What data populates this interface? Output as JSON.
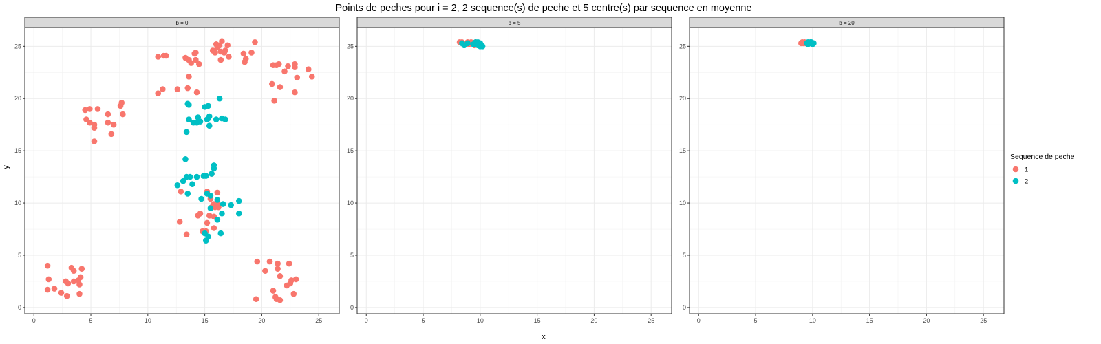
{
  "chart_data": {
    "type": "scatter",
    "title": "Points de peches pour i = 2, 2 sequence(s) de peche et 5 centre(s) par sequence en moyenne",
    "xlabel": "x",
    "ylabel": "y",
    "xlim": [
      -0.8,
      26.8
    ],
    "ylim": [
      -0.6,
      26.8
    ],
    "x_ticks": [
      0,
      5,
      10,
      15,
      20,
      25
    ],
    "y_ticks": [
      0,
      5,
      10,
      15,
      20,
      25
    ],
    "grid": true,
    "legend": {
      "title": "Sequence de peche",
      "position": "right",
      "entries": [
        {
          "label": "1",
          "color": "#F8766D"
        },
        {
          "label": "2",
          "color": "#00BFC4"
        }
      ]
    },
    "facets": [
      {
        "label": "b = 0",
        "series": [
          {
            "name": "1",
            "color": "#F8766D",
            "points": [
              [
                1.2,
                4.0
              ],
              [
                1.3,
                2.7
              ],
              [
                1.2,
                1.7
              ],
              [
                1.8,
                1.8
              ],
              [
                2.4,
                1.4
              ],
              [
                2.8,
                2.5
              ],
              [
                3.0,
                2.3
              ],
              [
                2.9,
                1.1
              ],
              [
                3.3,
                3.8
              ],
              [
                3.5,
                3.5
              ],
              [
                3.5,
                2.5
              ],
              [
                4.0,
                2.2
              ],
              [
                4.1,
                2.9
              ],
              [
                4.2,
                3.7
              ],
              [
                4.0,
                1.3
              ],
              [
                3.9,
                2.6
              ],
              [
                4.5,
                18.9
              ],
              [
                4.9,
                19.0
              ],
              [
                4.6,
                18.0
              ],
              [
                4.9,
                17.7
              ],
              [
                5.3,
                17.5
              ],
              [
                5.3,
                17.2
              ],
              [
                5.6,
                19.0
              ],
              [
                5.3,
                15.9
              ],
              [
                6.5,
                18.5
              ],
              [
                6.5,
                17.7
              ],
              [
                6.8,
                16.6
              ],
              [
                7.0,
                17.5
              ],
              [
                7.6,
                19.3
              ],
              [
                7.7,
                19.6
              ],
              [
                7.8,
                18.5
              ],
              [
                10.9,
                24.0
              ],
              [
                11.4,
                24.1
              ],
              [
                11.6,
                24.1
              ],
              [
                10.9,
                20.5
              ],
              [
                11.3,
                20.9
              ],
              [
                12.6,
                20.9
              ],
              [
                13.3,
                23.9
              ],
              [
                13.6,
                23.7
              ],
              [
                13.8,
                23.4
              ],
              [
                14.1,
                24.3
              ],
              [
                14.2,
                23.7
              ],
              [
                14.2,
                24.4
              ],
              [
                14.5,
                23.3
              ],
              [
                13.6,
                22.1
              ],
              [
                13.5,
                21.0
              ],
              [
                14.3,
                20.6
              ],
              [
                15.7,
                24.6
              ],
              [
                15.9,
                24.4
              ],
              [
                16.0,
                25.2
              ],
              [
                16.1,
                24.9
              ],
              [
                16.3,
                25.1
              ],
              [
                16.5,
                25.5
              ],
              [
                16.4,
                23.7
              ],
              [
                16.4,
                24.5
              ],
              [
                16.7,
                24.4
              ],
              [
                16.8,
                24.6
              ],
              [
                17.0,
                25.1
              ],
              [
                17.1,
                24.0
              ],
              [
                18.4,
                24.3
              ],
              [
                18.6,
                23.8
              ],
              [
                18.5,
                23.5
              ],
              [
                19.1,
                24.4
              ],
              [
                19.4,
                25.4
              ],
              [
                20.9,
                21.4
              ],
              [
                21.0,
                23.2
              ],
              [
                21.3,
                23.2
              ],
              [
                21.5,
                23.3
              ],
              [
                21.1,
                19.8
              ],
              [
                21.6,
                21.1
              ],
              [
                22.0,
                22.6
              ],
              [
                22.3,
                23.1
              ],
              [
                22.9,
                23.3
              ],
              [
                22.9,
                23.0
              ],
              [
                23.1,
                22.0
              ],
              [
                22.9,
                20.6
              ],
              [
                24.1,
                22.8
              ],
              [
                24.4,
                22.1
              ],
              [
                19.6,
                4.4
              ],
              [
                19.5,
                0.8
              ],
              [
                20.3,
                3.5
              ],
              [
                20.7,
                4.4
              ],
              [
                21.0,
                1.6
              ],
              [
                21.2,
                1.0
              ],
              [
                21.4,
                4.2
              ],
              [
                21.3,
                0.8
              ],
              [
                21.6,
                0.7
              ],
              [
                21.4,
                3.7
              ],
              [
                21.6,
                3.0
              ],
              [
                22.2,
                2.1
              ],
              [
                22.4,
                4.2
              ],
              [
                22.5,
                2.3
              ],
              [
                22.6,
                2.6
              ],
              [
                23.0,
                2.7
              ],
              [
                22.8,
                1.3
              ],
              [
                12.9,
                11.1
              ],
              [
                12.8,
                8.2
              ],
              [
                13.4,
                7.0
              ],
              [
                14.4,
                8.8
              ],
              [
                14.6,
                9.0
              ],
              [
                14.8,
                7.3
              ],
              [
                15.2,
                11.1
              ],
              [
                15.2,
                8.1
              ],
              [
                15.4,
                8.8
              ],
              [
                15.5,
                10.4
              ],
              [
                15.6,
                9.6
              ],
              [
                15.8,
                9.9
              ],
              [
                15.8,
                8.7
              ],
              [
                15.8,
                7.6
              ],
              [
                15.9,
                9.6
              ],
              [
                16.1,
                10.0
              ],
              [
                16.2,
                9.6
              ],
              [
                16.1,
                11.0
              ],
              [
                15.6,
                12.8
              ],
              [
                15.1,
                7.3
              ]
            ]
          },
          {
            "name": "2",
            "color": "#00BFC4",
            "points": [
              [
                13.5,
                19.5
              ],
              [
                13.6,
                19.4
              ],
              [
                13.6,
                18.0
              ],
              [
                14.4,
                18.2
              ],
              [
                13.4,
                16.8
              ],
              [
                14.0,
                17.7
              ],
              [
                14.3,
                17.7
              ],
              [
                14.6,
                17.8
              ],
              [
                15.0,
                19.2
              ],
              [
                15.3,
                19.3
              ],
              [
                15.3,
                18.1
              ],
              [
                15.4,
                17.4
              ],
              [
                15.2,
                18.0
              ],
              [
                15.4,
                18.3
              ],
              [
                16.0,
                18.0
              ],
              [
                16.3,
                20.0
              ],
              [
                16.5,
                18.1
              ],
              [
                16.8,
                18.0
              ],
              [
                13.3,
                14.2
              ],
              [
                12.6,
                11.7
              ],
              [
                13.1,
                12.1
              ],
              [
                13.4,
                12.5
              ],
              [
                13.7,
                12.5
              ],
              [
                13.5,
                10.9
              ],
              [
                13.9,
                11.8
              ],
              [
                14.3,
                12.5
              ],
              [
                14.7,
                10.4
              ],
              [
                14.9,
                12.6
              ],
              [
                15.1,
                12.6
              ],
              [
                15.2,
                10.9
              ],
              [
                15.6,
                12.8
              ],
              [
                15.8,
                13.6
              ],
              [
                15.8,
                13.3
              ],
              [
                15.5,
                9.5
              ],
              [
                16.1,
                10.3
              ],
              [
                16.6,
                9.9
              ],
              [
                16.5,
                9.0
              ],
              [
                17.3,
                9.8
              ],
              [
                18.0,
                10.2
              ],
              [
                18.0,
                9.0
              ],
              [
                16.1,
                8.4
              ],
              [
                16.4,
                7.1
              ],
              [
                15.0,
                7.1
              ],
              [
                15.3,
                6.8
              ],
              [
                15.1,
                6.4
              ],
              [
                15.5,
                10.7
              ]
            ]
          }
        ]
      },
      {
        "label": "b = 5",
        "series": [
          {
            "name": "1",
            "color": "#F8766D",
            "points": [
              [
                8.2,
                25.4
              ],
              [
                8.5,
                25.3
              ],
              [
                8.7,
                25.2
              ],
              [
                8.9,
                25.4
              ],
              [
                9.0,
                25.2
              ],
              [
                9.2,
                25.4
              ],
              [
                9.4,
                25.3
              ],
              [
                9.5,
                25.1
              ],
              [
                9.1,
                25.3
              ],
              [
                8.4,
                25.4
              ],
              [
                8.8,
                25.3
              ],
              [
                9.6,
                25.4
              ]
            ]
          },
          {
            "name": "2",
            "color": "#00BFC4",
            "points": [
              [
                8.4,
                25.3
              ],
              [
                8.6,
                25.1
              ],
              [
                8.9,
                25.3
              ],
              [
                9.4,
                25.2
              ],
              [
                9.6,
                25.4
              ],
              [
                9.7,
                25.2
              ],
              [
                9.8,
                25.1
              ],
              [
                9.9,
                25.3
              ],
              [
                10.0,
                25.0
              ],
              [
                10.1,
                25.1
              ],
              [
                9.8,
                25.4
              ],
              [
                10.0,
                25.3
              ],
              [
                10.2,
                25.0
              ]
            ]
          }
        ]
      },
      {
        "label": "b = 20",
        "series": [
          {
            "name": "1",
            "color": "#F8766D",
            "points": [
              [
                9.0,
                25.3
              ],
              [
                9.1,
                25.4
              ],
              [
                9.2,
                25.3
              ],
              [
                9.3,
                25.4
              ],
              [
                9.4,
                25.3
              ]
            ]
          },
          {
            "name": "2",
            "color": "#00BFC4",
            "points": [
              [
                9.5,
                25.3
              ],
              [
                9.6,
                25.4
              ],
              [
                9.7,
                25.3
              ],
              [
                9.8,
                25.4
              ],
              [
                9.9,
                25.3
              ],
              [
                10.0,
                25.2
              ],
              [
                10.1,
                25.3
              ],
              [
                9.6,
                25.2
              ],
              [
                9.9,
                25.4
              ]
            ]
          }
        ]
      }
    ]
  }
}
